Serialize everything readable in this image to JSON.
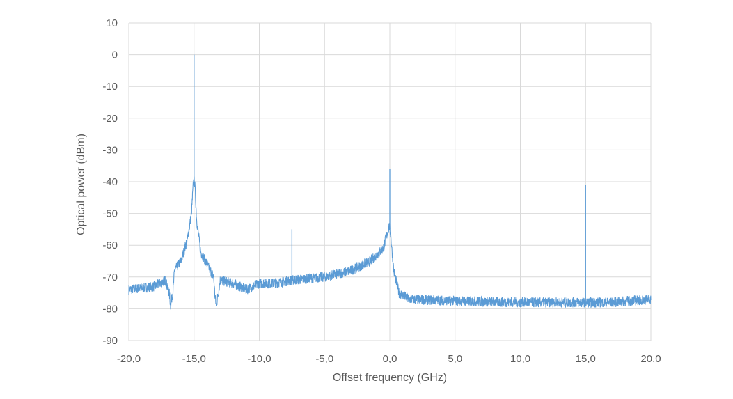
{
  "chart_data": {
    "type": "line",
    "title": "",
    "xlabel": "Offset frequency (GHz)",
    "ylabel": "Optical power (dBm)",
    "xlim": [
      -20,
      20
    ],
    "ylim": [
      -90,
      10
    ],
    "grid": true,
    "legend": "none",
    "x_ticks": [
      "-20,0",
      "-15,0",
      "-10,0",
      "-5,0",
      "0,0",
      "5,0",
      "10,0",
      "15,0",
      "20,0"
    ],
    "x_tick_values": [
      -20,
      -15,
      -10,
      -5,
      0,
      5,
      10,
      15,
      20
    ],
    "y_ticks": [
      "10",
      "0",
      "-10",
      "-20",
      "-30",
      "-40",
      "-50",
      "-60",
      "-70",
      "-80",
      "-90"
    ],
    "y_tick_values": [
      10,
      0,
      -10,
      -20,
      -30,
      -40,
      -50,
      -60,
      -70,
      -80,
      -90
    ],
    "series_color": "#5b9bd5",
    "series": [
      {
        "x": [
          -20,
          -18,
          -17.2,
          -16.9,
          -16.8,
          -16.6,
          -16.5,
          -16,
          -15.5,
          -15.2,
          -15.05,
          -14.95,
          -14.8,
          -14.5,
          -14,
          -13.5,
          -13.4,
          -13.3,
          -13.1,
          -13,
          -12,
          -11,
          -10,
          -9,
          -7.5,
          -5,
          -3,
          -1.5,
          -0.5,
          -0.05,
          0.05,
          0.3,
          0.7,
          1.5,
          5,
          10,
          15,
          17,
          20
        ],
        "y": [
          -74,
          -73,
          -71,
          -75,
          -79,
          -74,
          -68,
          -65,
          -58,
          -50,
          -40,
          -40,
          -52,
          -62,
          -66,
          -70,
          -76,
          -79,
          -74,
          -71,
          -72,
          -74,
          -72,
          -72,
          -71,
          -70,
          -68,
          -65,
          -61,
          -54,
          -56,
          -68,
          -75,
          -77,
          -77.5,
          -78,
          -78,
          -78,
          -77
        ]
      }
    ],
    "peaks": [
      {
        "x": -15.0,
        "y": 0
      },
      {
        "x": -7.5,
        "y": -55
      },
      {
        "x": 0.0,
        "y": -36
      },
      {
        "x": 15.0,
        "y": -41
      }
    ]
  }
}
